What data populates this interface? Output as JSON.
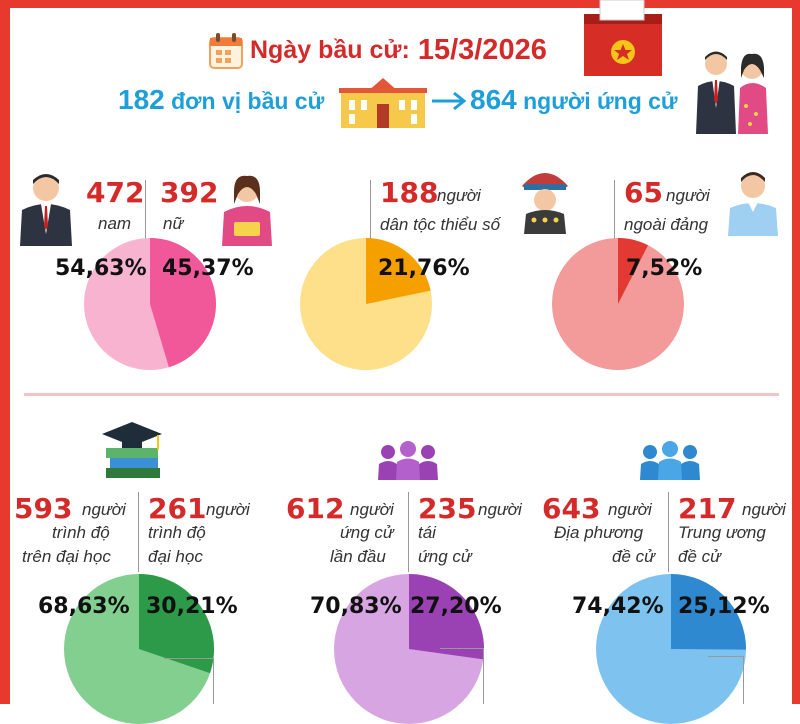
{
  "header": {
    "election_date_label": "Ngày bầu cử:",
    "election_date_value": "15/3/2026",
    "units_count": "182",
    "units_label": "đơn vị bầu cử",
    "candidates_count": "864",
    "candidates_label": "người ứng cử"
  },
  "colors": {
    "frame": "#e8392f",
    "accent_red": "#d42a2a",
    "accent_blue": "#1e9fd9",
    "gender_light": "#f7b3cf",
    "gender_dark": "#f0589a",
    "ethnic_light": "#ffe08a",
    "ethnic_dark": "#f6a000",
    "party_light": "#f39b9b",
    "party_dark": "#e23a32",
    "edu_light": "#82cf90",
    "edu_dark": "#2c9a48",
    "cand_light": "#d7a6e2",
    "cand_dark": "#9a42b4",
    "nom_light": "#7ec3ef",
    "nom_dark": "#2f89d0"
  },
  "icons": {
    "calendar": "calendar-icon",
    "ballot": "ballot-box-icon",
    "building": "government-building-icon",
    "couple": "candidates-couple-icon",
    "man": "male-candidate-icon",
    "woman": "female-candidate-icon",
    "ethnic": "ethnic-minority-person-icon",
    "nonparty": "non-party-person-icon",
    "education": "graduation-cap-books-icon",
    "people_purple": "people-group-icon",
    "people_blue": "people-group-icon"
  },
  "chart_data": [
    {
      "type": "pie",
      "categories": [
        "nam",
        "nữ"
      ],
      "counts": [
        472,
        392
      ],
      "percent_labels": [
        "54,63%",
        "45,37%"
      ],
      "values": [
        54.63,
        45.37
      ],
      "count_labels": [
        "472",
        "392"
      ],
      "count_units": [
        "nam",
        "nữ"
      ]
    },
    {
      "type": "pie",
      "categories": [
        "dân tộc thiểu số"
      ],
      "counts": [
        188
      ],
      "values": [
        21.76
      ],
      "percent_labels": [
        "21,76%"
      ],
      "count_labels": [
        "188"
      ],
      "count_units": [
        "người"
      ],
      "descriptions": [
        "dân tộc thiểu số"
      ]
    },
    {
      "type": "pie",
      "categories": [
        "ngoài đảng"
      ],
      "counts": [
        65
      ],
      "values": [
        7.52
      ],
      "percent_labels": [
        "7,52%"
      ],
      "count_labels": [
        "65"
      ],
      "count_units": [
        "người"
      ],
      "descriptions": [
        "ngoài đảng"
      ]
    },
    {
      "type": "pie",
      "categories": [
        "trình độ trên đại học",
        "trình độ đại học"
      ],
      "counts": [
        593,
        261
      ],
      "values": [
        68.63,
        30.21
      ],
      "percent_labels": [
        "68,63%",
        "30,21%"
      ],
      "count_labels": [
        "593",
        "261"
      ],
      "count_units": [
        "người",
        "người"
      ],
      "descriptions": [
        [
          "trình độ",
          "trên đại học"
        ],
        [
          "trình độ",
          "đại học"
        ]
      ]
    },
    {
      "type": "pie",
      "categories": [
        "ứng cử lần đầu",
        "tái ứng cử"
      ],
      "counts": [
        612,
        235
      ],
      "values": [
        70.83,
        27.2
      ],
      "percent_labels": [
        "70,83%",
        "27,20%"
      ],
      "count_labels": [
        "612",
        "235"
      ],
      "count_units": [
        "người",
        "người"
      ],
      "descriptions": [
        [
          "ứng cử",
          "lần đầu"
        ],
        [
          "tái",
          "ứng cử"
        ]
      ]
    },
    {
      "type": "pie",
      "categories": [
        "Địa phương đề cử",
        "Trung ương đề cử"
      ],
      "counts": [
        643,
        217
      ],
      "values": [
        74.42,
        25.12
      ],
      "percent_labels": [
        "74,42%",
        "25,12%"
      ],
      "count_labels": [
        "643",
        "217"
      ],
      "count_units": [
        "người",
        "người"
      ],
      "descriptions": [
        [
          "Địa phương",
          "đề cử"
        ],
        [
          "Trung ương",
          "đề cử"
        ]
      ]
    }
  ]
}
